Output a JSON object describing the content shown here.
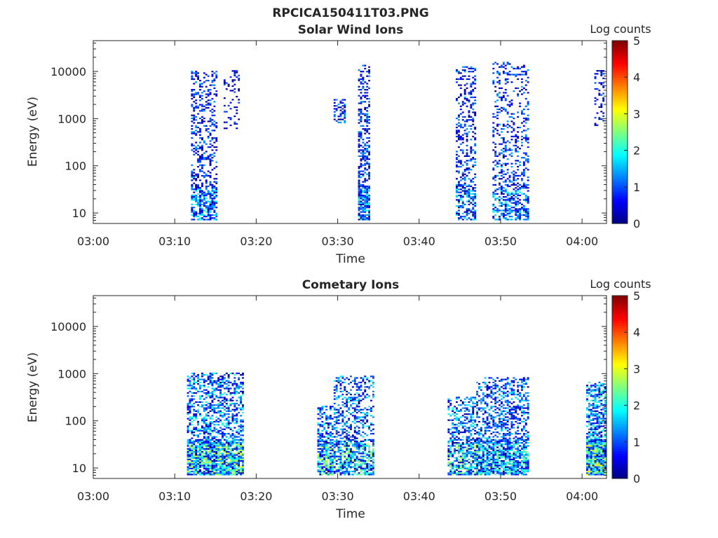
{
  "figure": {
    "title": "RPCICA150411T03.PNG"
  },
  "colormap": [
    "#00007f",
    "#0000ff",
    "#007fff",
    "#00ffff",
    "#7fff7f",
    "#ffff00",
    "#ff7f00",
    "#ff0000",
    "#7f0000"
  ],
  "chart_data": [
    {
      "type": "heatmap",
      "title": "Solar Wind Ions",
      "xlabel": "Time",
      "ylabel": "Energy (eV)",
      "x_ticks": [
        "03:00",
        "03:10",
        "03:20",
        "03:30",
        "03:40",
        "03:50",
        "04:00"
      ],
      "y_ticks": [
        "10",
        "100",
        "1000",
        "10000"
      ],
      "y_scale": "log",
      "ylim": [
        6,
        45000
      ],
      "xlim_minutes": [
        0,
        63
      ],
      "colorbar": {
        "label": "Log counts",
        "ticks": [
          "0",
          "1",
          "2",
          "3",
          "4",
          "5"
        ],
        "range": [
          0,
          5
        ]
      },
      "bursts": [
        {
          "t_start": 12.0,
          "t_end": 15.2,
          "e_min": 7,
          "e_max": 10000,
          "v_max": 2.0,
          "density": 0.35
        },
        {
          "t_start": 16.0,
          "t_end": 18.0,
          "e_min": 600,
          "e_max": 10000,
          "v_max": 1.5,
          "density": 0.18
        },
        {
          "t_start": 29.5,
          "t_end": 31.0,
          "e_min": 800,
          "e_max": 2500,
          "v_max": 2.0,
          "density": 0.45
        },
        {
          "t_start": 32.5,
          "t_end": 34.0,
          "e_min": 7,
          "e_max": 13000,
          "v_max": 2.0,
          "density": 0.45
        },
        {
          "t_start": 44.5,
          "t_end": 47.0,
          "e_min": 7,
          "e_max": 12000,
          "v_max": 2.0,
          "density": 0.35
        },
        {
          "t_start": 49.0,
          "t_end": 53.5,
          "e_min": 7,
          "e_max": 15000,
          "v_max": 2.0,
          "density": 0.3
        },
        {
          "t_start": 61.5,
          "t_end": 62.7,
          "e_min": 700,
          "e_max": 10000,
          "v_max": 1.5,
          "density": 0.25
        }
      ]
    },
    {
      "type": "heatmap",
      "title": "Cometary Ions",
      "xlabel": "Time",
      "ylabel": "Energy (eV)",
      "x_ticks": [
        "03:00",
        "03:10",
        "03:20",
        "03:30",
        "03:40",
        "03:50",
        "04:00"
      ],
      "y_ticks": [
        "10",
        "100",
        "1000",
        "10000"
      ],
      "y_scale": "log",
      "ylim": [
        6,
        45000
      ],
      "xlim_minutes": [
        0,
        63
      ],
      "colorbar": {
        "label": "Log counts",
        "ticks": [
          "0",
          "1",
          "2",
          "3",
          "4",
          "5"
        ],
        "range": [
          0,
          5
        ]
      },
      "bursts": [
        {
          "t_start": 11.5,
          "t_end": 18.3,
          "e_min": 7,
          "e_max": 1000,
          "v_max": 3.0,
          "density": 0.5
        },
        {
          "t_start": 27.5,
          "t_end": 29.5,
          "e_min": 7,
          "e_max": 200,
          "v_max": 2.8,
          "density": 0.45
        },
        {
          "t_start": 29.5,
          "t_end": 34.3,
          "e_min": 7,
          "e_max": 900,
          "v_max": 2.8,
          "density": 0.4
        },
        {
          "t_start": 43.5,
          "t_end": 47.0,
          "e_min": 7,
          "e_max": 300,
          "v_max": 2.8,
          "density": 0.4
        },
        {
          "t_start": 47.0,
          "t_end": 53.5,
          "e_min": 7,
          "e_max": 800,
          "v_max": 2.5,
          "density": 0.45
        },
        {
          "t_start": 60.5,
          "t_end": 63.0,
          "e_min": 7,
          "e_max": 650,
          "v_max": 3.2,
          "density": 0.6
        }
      ]
    }
  ]
}
